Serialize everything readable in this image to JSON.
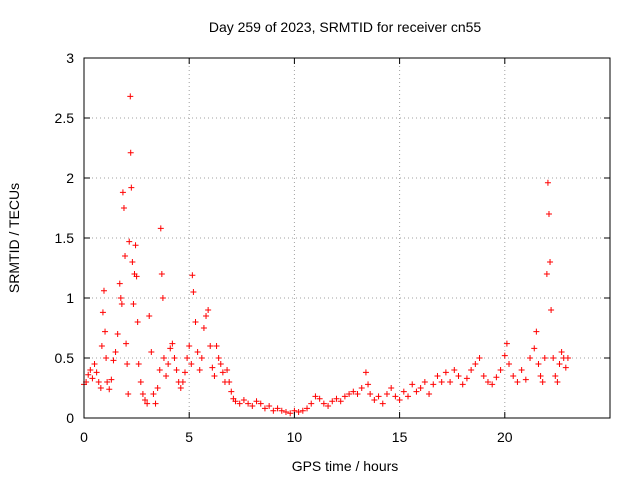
{
  "chart_data": {
    "type": "scatter",
    "title": "Day 259 of 2023, SRMTID for receiver cn55",
    "xlabel": "GPS time / hours",
    "ylabel": "SRMTID / TECUs",
    "xlim": [
      0,
      25
    ],
    "ylim": [
      0,
      3
    ],
    "xticks": [
      0,
      5,
      10,
      15,
      20
    ],
    "yticks": [
      0,
      0.5,
      1,
      1.5,
      2,
      2.5,
      3
    ],
    "xtick_labels": [
      "0",
      "5",
      "10",
      "15",
      "20"
    ],
    "ytick_labels": [
      "0",
      "0.5",
      "1",
      "1.5",
      "2",
      "2.5",
      "3"
    ],
    "grid": true,
    "marker": "+",
    "color": "#ff0000",
    "series": [
      {
        "name": "SRMTID",
        "points": [
          [
            0.0,
            0.28
          ],
          [
            0.1,
            0.3
          ],
          [
            0.2,
            0.36
          ],
          [
            0.3,
            0.4
          ],
          [
            0.4,
            0.33
          ],
          [
            0.5,
            0.45
          ],
          [
            0.6,
            0.38
          ],
          [
            0.7,
            0.3
          ],
          [
            0.8,
            0.25
          ],
          [
            0.85,
            0.6
          ],
          [
            0.9,
            0.88
          ],
          [
            0.95,
            1.06
          ],
          [
            1.0,
            0.72
          ],
          [
            1.05,
            0.5
          ],
          [
            1.1,
            0.3
          ],
          [
            1.2,
            0.24
          ],
          [
            1.3,
            0.32
          ],
          [
            1.4,
            0.48
          ],
          [
            1.5,
            0.55
          ],
          [
            1.6,
            0.7
          ],
          [
            1.7,
            1.12
          ],
          [
            1.75,
            1.0
          ],
          [
            1.8,
            0.95
          ],
          [
            1.85,
            1.88
          ],
          [
            1.9,
            1.75
          ],
          [
            1.95,
            1.35
          ],
          [
            2.0,
            0.62
          ],
          [
            2.05,
            0.45
          ],
          [
            2.1,
            0.2
          ],
          [
            2.15,
            1.47
          ],
          [
            2.2,
            2.68
          ],
          [
            2.22,
            2.21
          ],
          [
            2.25,
            1.92
          ],
          [
            2.3,
            1.3
          ],
          [
            2.35,
            0.95
          ],
          [
            2.4,
            1.2
          ],
          [
            2.45,
            1.44
          ],
          [
            2.5,
            1.18
          ],
          [
            2.55,
            0.8
          ],
          [
            2.6,
            0.45
          ],
          [
            2.7,
            0.3
          ],
          [
            2.8,
            0.2
          ],
          [
            2.9,
            0.15
          ],
          [
            3.0,
            0.12
          ],
          [
            3.1,
            0.85
          ],
          [
            3.2,
            0.55
          ],
          [
            3.3,
            0.2
          ],
          [
            3.4,
            0.12
          ],
          [
            3.5,
            0.25
          ],
          [
            3.6,
            0.4
          ],
          [
            3.65,
            1.58
          ],
          [
            3.7,
            1.2
          ],
          [
            3.75,
            1.0
          ],
          [
            3.8,
            0.5
          ],
          [
            3.9,
            0.35
          ],
          [
            4.0,
            0.45
          ],
          [
            4.1,
            0.58
          ],
          [
            4.2,
            0.62
          ],
          [
            4.3,
            0.5
          ],
          [
            4.4,
            0.4
          ],
          [
            4.5,
            0.3
          ],
          [
            4.6,
            0.25
          ],
          [
            4.7,
            0.3
          ],
          [
            4.8,
            0.38
          ],
          [
            4.9,
            0.5
          ],
          [
            5.0,
            0.6
          ],
          [
            5.1,
            0.45
          ],
          [
            5.15,
            1.19
          ],
          [
            5.2,
            1.05
          ],
          [
            5.3,
            0.8
          ],
          [
            5.4,
            0.55
          ],
          [
            5.5,
            0.4
          ],
          [
            5.6,
            0.5
          ],
          [
            5.7,
            0.75
          ],
          [
            5.8,
            0.85
          ],
          [
            5.9,
            0.9
          ],
          [
            6.0,
            0.6
          ],
          [
            6.1,
            0.42
          ],
          [
            6.2,
            0.35
          ],
          [
            6.3,
            0.6
          ],
          [
            6.4,
            0.5
          ],
          [
            6.5,
            0.45
          ],
          [
            6.6,
            0.38
          ],
          [
            6.7,
            0.3
          ],
          [
            6.8,
            0.4
          ],
          [
            6.9,
            0.3
          ],
          [
            7.0,
            0.22
          ],
          [
            7.1,
            0.16
          ],
          [
            7.2,
            0.14
          ],
          [
            7.4,
            0.12
          ],
          [
            7.6,
            0.15
          ],
          [
            7.8,
            0.12
          ],
          [
            8.0,
            0.1
          ],
          [
            8.2,
            0.14
          ],
          [
            8.4,
            0.12
          ],
          [
            8.6,
            0.08
          ],
          [
            8.8,
            0.1
          ],
          [
            9.0,
            0.06
          ],
          [
            9.2,
            0.08
          ],
          [
            9.4,
            0.06
          ],
          [
            9.6,
            0.05
          ],
          [
            9.8,
            0.04
          ],
          [
            10.0,
            0.06
          ],
          [
            10.2,
            0.05
          ],
          [
            10.4,
            0.06
          ],
          [
            10.6,
            0.08
          ],
          [
            10.8,
            0.12
          ],
          [
            11.0,
            0.18
          ],
          [
            11.2,
            0.16
          ],
          [
            11.4,
            0.12
          ],
          [
            11.6,
            0.1
          ],
          [
            11.8,
            0.14
          ],
          [
            12.0,
            0.16
          ],
          [
            12.2,
            0.14
          ],
          [
            12.4,
            0.18
          ],
          [
            12.6,
            0.2
          ],
          [
            12.8,
            0.22
          ],
          [
            13.0,
            0.2
          ],
          [
            13.2,
            0.25
          ],
          [
            13.4,
            0.38
          ],
          [
            13.5,
            0.28
          ],
          [
            13.6,
            0.2
          ],
          [
            13.8,
            0.15
          ],
          [
            14.0,
            0.18
          ],
          [
            14.2,
            0.12
          ],
          [
            14.4,
            0.2
          ],
          [
            14.6,
            0.25
          ],
          [
            14.8,
            0.18
          ],
          [
            15.0,
            0.15
          ],
          [
            15.2,
            0.22
          ],
          [
            15.4,
            0.18
          ],
          [
            15.6,
            0.28
          ],
          [
            15.8,
            0.22
          ],
          [
            16.0,
            0.25
          ],
          [
            16.2,
            0.3
          ],
          [
            16.4,
            0.2
          ],
          [
            16.6,
            0.28
          ],
          [
            16.8,
            0.35
          ],
          [
            17.0,
            0.3
          ],
          [
            17.2,
            0.38
          ],
          [
            17.4,
            0.3
          ],
          [
            17.6,
            0.4
          ],
          [
            17.8,
            0.35
          ],
          [
            18.0,
            0.28
          ],
          [
            18.2,
            0.33
          ],
          [
            18.4,
            0.4
          ],
          [
            18.6,
            0.45
          ],
          [
            18.8,
            0.5
          ],
          [
            19.0,
            0.35
          ],
          [
            19.2,
            0.3
          ],
          [
            19.4,
            0.28
          ],
          [
            19.6,
            0.34
          ],
          [
            19.8,
            0.4
          ],
          [
            20.0,
            0.52
          ],
          [
            20.1,
            0.62
          ],
          [
            20.2,
            0.45
          ],
          [
            20.4,
            0.35
          ],
          [
            20.6,
            0.3
          ],
          [
            20.8,
            0.4
          ],
          [
            21.0,
            0.32
          ],
          [
            21.2,
            0.5
          ],
          [
            21.4,
            0.58
          ],
          [
            21.5,
            0.72
          ],
          [
            21.6,
            0.45
          ],
          [
            21.7,
            0.35
          ],
          [
            21.8,
            0.3
          ],
          [
            21.9,
            0.5
          ],
          [
            22.0,
            1.2
          ],
          [
            22.05,
            1.96
          ],
          [
            22.1,
            1.7
          ],
          [
            22.15,
            1.3
          ],
          [
            22.2,
            0.9
          ],
          [
            22.3,
            0.5
          ],
          [
            22.4,
            0.35
          ],
          [
            22.5,
            0.3
          ],
          [
            22.6,
            0.45
          ],
          [
            22.7,
            0.55
          ],
          [
            22.8,
            0.5
          ],
          [
            22.9,
            0.42
          ],
          [
            23.0,
            0.5
          ]
        ]
      }
    ]
  }
}
